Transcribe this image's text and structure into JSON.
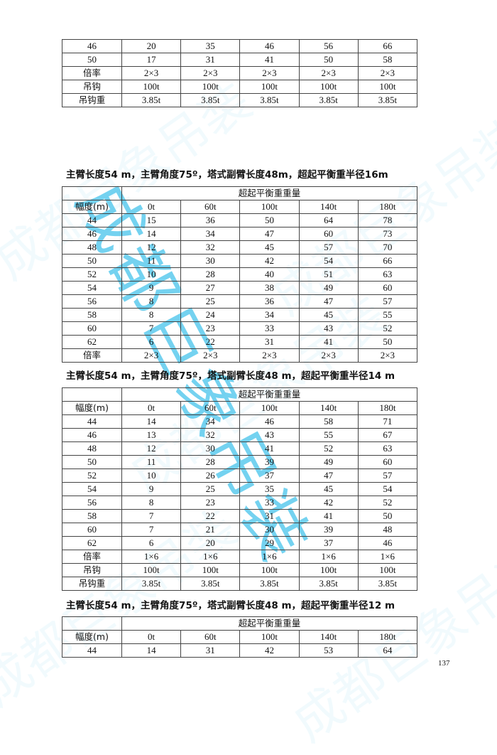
{
  "watermark": "成都巨象吊装",
  "page_number": "137",
  "tables": [
    {
      "heading": "",
      "has_header": false,
      "rows": [
        [
          "46",
          "20",
          "35",
          "46",
          "56",
          "66"
        ],
        [
          "50",
          "17",
          "31",
          "41",
          "50",
          "58"
        ],
        [
          "倍率",
          "2×3",
          "2×3",
          "2×3",
          "2×3",
          "2×3"
        ],
        [
          "吊钩",
          "100t",
          "100t",
          "100t",
          "100t",
          "100t"
        ],
        [
          "吊钩重",
          "3.85t",
          "3.85t",
          "3.85t",
          "3.85t",
          "3.85t"
        ]
      ]
    },
    {
      "heading": "主臂长度54 m，主臂角度75º，塔式副臂长度48m，超起平衡重半径16m",
      "has_header": true,
      "group_header": "超起平衡重重量",
      "columns": [
        "幅度(m)",
        "0t",
        "60t",
        "100t",
        "140t",
        "180t"
      ],
      "rows": [
        [
          "44",
          "15",
          "36",
          "50",
          "64",
          "78"
        ],
        [
          "46",
          "14",
          "34",
          "47",
          "60",
          "73"
        ],
        [
          "48",
          "12",
          "32",
          "45",
          "57",
          "70"
        ],
        [
          "50",
          "11",
          "30",
          "42",
          "54",
          "66"
        ],
        [
          "52",
          "10",
          "28",
          "40",
          "51",
          "63"
        ],
        [
          "54",
          "9",
          "27",
          "38",
          "49",
          "60"
        ],
        [
          "56",
          "8",
          "25",
          "36",
          "47",
          "57"
        ],
        [
          "58",
          "8",
          "24",
          "34",
          "45",
          "55"
        ],
        [
          "60",
          "7",
          "23",
          "33",
          "43",
          "52"
        ],
        [
          "62",
          "6",
          "22",
          "31",
          "41",
          "50"
        ],
        [
          "倍率",
          "2×3",
          "2×3",
          "2×3",
          "2×3",
          "2×3"
        ]
      ]
    },
    {
      "heading": "主臂长度54 m，主臂角度75º，塔式副臂长度48 m，超起平衡重半径14 m",
      "has_header": true,
      "group_header": "超起平衡重重量",
      "columns": [
        "幅度(m)",
        "0t",
        "60t",
        "100t",
        "140t",
        "180t"
      ],
      "rows": [
        [
          "44",
          "14",
          "34",
          "46",
          "58",
          "71"
        ],
        [
          "46",
          "13",
          "32",
          "43",
          "55",
          "67"
        ],
        [
          "48",
          "12",
          "30",
          "41",
          "52",
          "63"
        ],
        [
          "50",
          "11",
          "28",
          "39",
          "49",
          "60"
        ],
        [
          "52",
          "10",
          "26",
          "37",
          "47",
          "57"
        ],
        [
          "54",
          "9",
          "25",
          "35",
          "45",
          "54"
        ],
        [
          "56",
          "8",
          "23",
          "33",
          "42",
          "52"
        ],
        [
          "58",
          "7",
          "22",
          "31",
          "41",
          "50"
        ],
        [
          "60",
          "7",
          "21",
          "30",
          "39",
          "48"
        ],
        [
          "62",
          "6",
          "20",
          "29",
          "37",
          "46"
        ],
        [
          "倍率",
          "1×6",
          "1×6",
          "1×6",
          "1×6",
          "1×6"
        ],
        [
          "吊钩",
          "100t",
          "100t",
          "100t",
          "100t",
          "100t"
        ],
        [
          "吊钩重",
          "3.85t",
          "3.85t",
          "3.85t",
          "3.85t",
          "3.85t"
        ]
      ]
    },
    {
      "heading": "主臂长度54 m，主臂角度75º，塔式副臂长度48 m，超起平衡重半径12 m",
      "has_header": true,
      "group_header": "超起平衡重重量",
      "columns": [
        "幅度(m)",
        "0t",
        "60t",
        "100t",
        "140t",
        "180t"
      ],
      "rows": [
        [
          "44",
          "14",
          "31",
          "42",
          "53",
          "64"
        ]
      ]
    }
  ]
}
